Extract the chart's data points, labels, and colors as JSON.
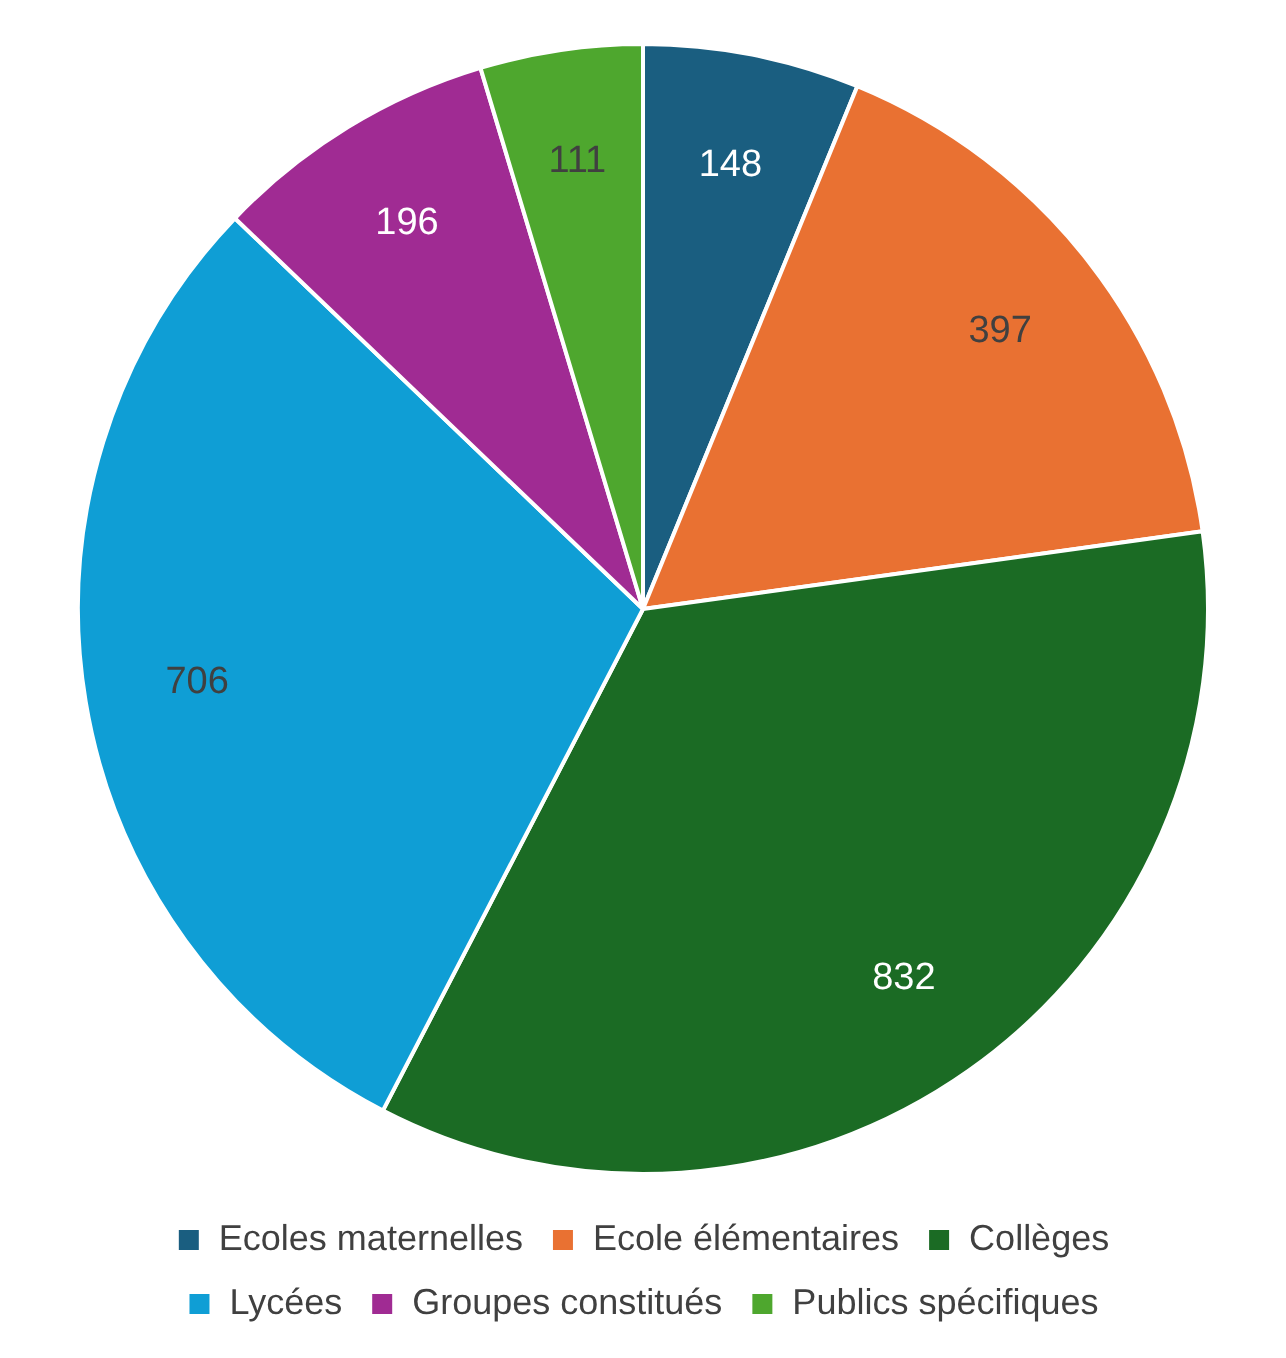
{
  "chart_data": {
    "type": "pie",
    "categories": [
      "Ecoles maternelles",
      "Ecole élémentaires",
      "Collèges",
      "Lycées",
      "Groupes constitués",
      "Publics spécifiques"
    ],
    "values": [
      148,
      397,
      832,
      706,
      196,
      111
    ],
    "colors": [
      "#1a5e80",
      "#e97132",
      "#1b6b24",
      "#0f9ed5",
      "#a02b93",
      "#4ea72e"
    ],
    "data_labels": true,
    "legend": "bottom"
  }
}
